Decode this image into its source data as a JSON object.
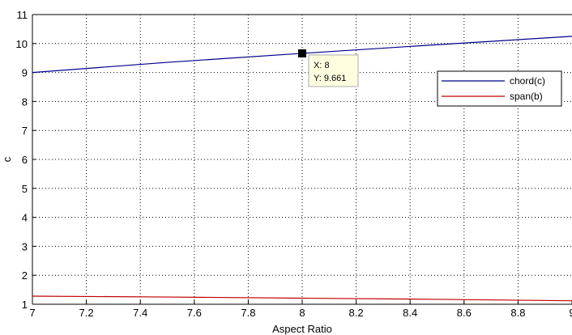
{
  "chart_data": {
    "type": "line",
    "xlabel": "Aspect Ratio",
    "ylabel": "c",
    "xlim": [
      7,
      9
    ],
    "ylim": [
      1,
      11
    ],
    "xticks": [
      "7",
      "7.2",
      "7.4",
      "7.6",
      "7.8",
      "8",
      "8.2",
      "8.4",
      "8.6",
      "8.8",
      "9"
    ],
    "yticks": [
      "1",
      "2",
      "3",
      "4",
      "5",
      "6",
      "7",
      "8",
      "9",
      "10",
      "11"
    ],
    "grid": true,
    "legend_position": "upper-right",
    "series": [
      {
        "name": "chord(c)",
        "color": "#00008b",
        "x": [
          7,
          7.5,
          8,
          8.5,
          9
        ],
        "y": [
          9.0,
          9.35,
          9.661,
          9.96,
          10.25
        ]
      },
      {
        "name": "span(b)",
        "color": "#c00000",
        "x": [
          7,
          7.5,
          8,
          8.5,
          9
        ],
        "y": [
          1.28,
          1.25,
          1.21,
          1.17,
          1.12
        ]
      }
    ],
    "datatip": {
      "x": 8,
      "y": 9.661,
      "x_text": "X: 8",
      "y_text": "Y: 9.661"
    }
  }
}
